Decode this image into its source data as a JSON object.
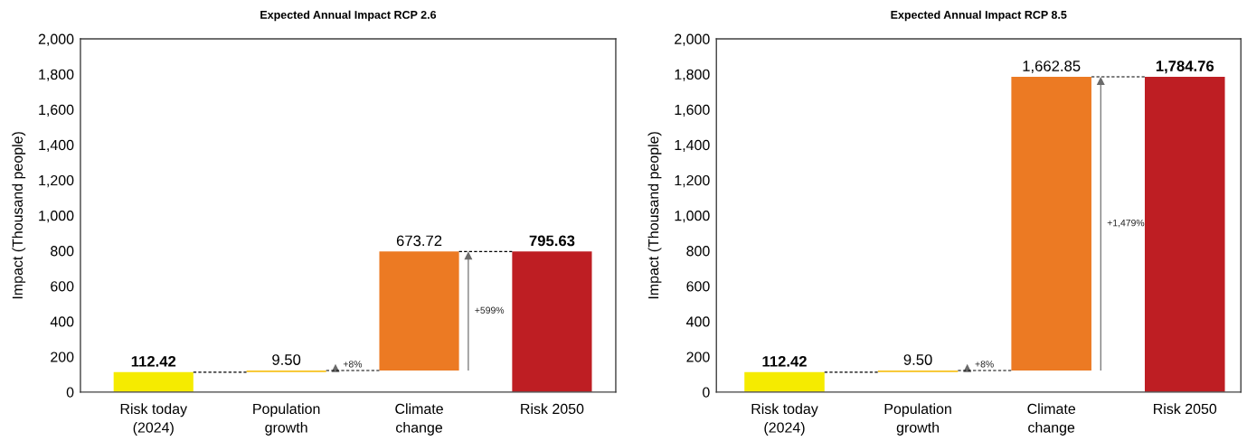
{
  "chart_data": [
    {
      "type": "bar",
      "title": "Expected Annual Impact RCP 2.6",
      "ylabel": "Impact (Thousand people)",
      "categories": [
        "Risk today\n(2024)",
        "Population\ngrowth",
        "Climate\nchange",
        "Risk 2050"
      ],
      "values": [
        112.42,
        9.5,
        673.72,
        795.63
      ],
      "base": [
        0,
        112.42,
        121.92,
        0
      ],
      "colors": [
        "#f5eb00",
        "#f7c21c",
        "#ec7a23",
        "#be1e23"
      ],
      "value_labels": [
        "112.42",
        "9.50",
        "673.72",
        "795.63"
      ],
      "ylim": [
        0,
        2000
      ],
      "yticks": [
        0,
        200,
        400,
        600,
        800,
        {
          "value": 1000,
          "label": "1,000"
        },
        {
          "value": 1200,
          "label": "1,200"
        },
        {
          "value": 1400,
          "label": "1,400"
        },
        {
          "value": 1600,
          "label": "1,600"
        },
        {
          "value": 1800,
          "label": "1,800"
        },
        {
          "value": 2000,
          "label": "2,000"
        }
      ],
      "annotations": [
        "+8%",
        "+599%"
      ],
      "grid": false,
      "legend": false
    },
    {
      "type": "bar",
      "title": "Expected Annual Impact RCP 8.5",
      "ylabel": "Impact (Thousand people)",
      "categories": [
        "Risk today\n(2024)",
        "Population\ngrowth",
        "Climate\nchange",
        "Risk 2050"
      ],
      "values": [
        112.42,
        9.5,
        1662.85,
        1784.76
      ],
      "base": [
        0,
        112.42,
        121.92,
        0
      ],
      "colors": [
        "#f5eb00",
        "#f7c21c",
        "#ec7a23",
        "#be1e23"
      ],
      "value_labels": [
        "112.42",
        "9.50",
        "1,662.85",
        "1,784.76"
      ],
      "ylim": [
        0,
        2000
      ],
      "yticks": [
        0,
        200,
        400,
        600,
        800,
        {
          "value": 1000,
          "label": "1,000"
        },
        {
          "value": 1200,
          "label": "1,200"
        },
        {
          "value": 1400,
          "label": "1,400"
        },
        {
          "value": 1600,
          "label": "1,600"
        },
        {
          "value": 1800,
          "label": "1,800"
        },
        {
          "value": 2000,
          "label": "2,000"
        }
      ],
      "annotations": [
        "+8%",
        "+1,479%"
      ],
      "grid": false,
      "legend": false
    }
  ]
}
